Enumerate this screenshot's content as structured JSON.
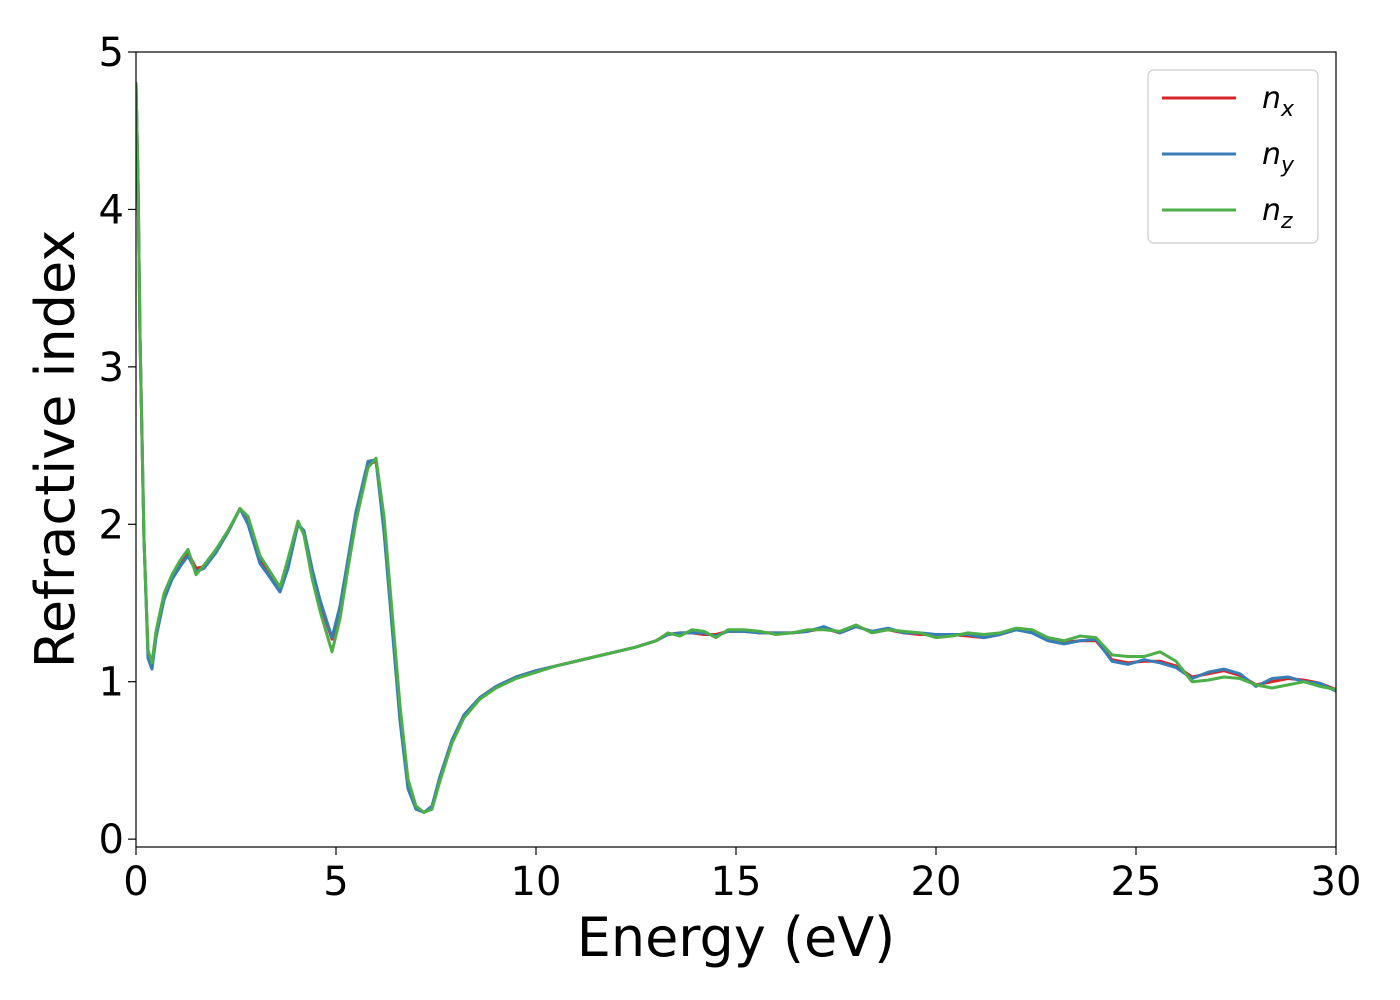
{
  "chart_data": {
    "type": "line",
    "xlabel": "Energy (eV)",
    "ylabel": "Refractive index",
    "xlim": [
      0,
      30
    ],
    "ylim": [
      -0.05,
      5
    ],
    "xticks": [
      0,
      5,
      10,
      15,
      20,
      25,
      30
    ],
    "yticks": [
      0,
      1,
      2,
      3,
      4,
      5
    ],
    "grid": false,
    "legend_position": "top-right",
    "series": [
      {
        "name": "n_x",
        "label_base": "n",
        "label_sub": "x",
        "color": "#d62728",
        "x": [
          0,
          0.05,
          0.1,
          0.2,
          0.3,
          0.4,
          0.5,
          0.7,
          0.9,
          1.1,
          1.3,
          1.5,
          1.7,
          2.0,
          2.3,
          2.6,
          2.8,
          3.1,
          3.3,
          3.6,
          3.8,
          4.05,
          4.2,
          4.4,
          4.6,
          4.9,
          5.1,
          5.3,
          5.5,
          5.8,
          6.0,
          6.2,
          6.4,
          6.6,
          6.8,
          7.0,
          7.2,
          7.4,
          7.6,
          7.9,
          8.2,
          8.6,
          9.0,
          9.5,
          10.0,
          10.5,
          11.0,
          11.5,
          12.0,
          12.5,
          13.0,
          13.3,
          13.6,
          13.9,
          14.2,
          14.5,
          14.8,
          15.2,
          15.6,
          16.0,
          16.4,
          16.8,
          17.2,
          17.6,
          18.0,
          18.4,
          18.8,
          19.2,
          19.6,
          20.0,
          20.4,
          20.8,
          21.2,
          21.6,
          22.0,
          22.4,
          22.8,
          23.2,
          23.6,
          24.0,
          24.4,
          24.8,
          25.2,
          25.6,
          26.0,
          26.4,
          26.8,
          27.2,
          27.6,
          28.0,
          28.4,
          28.8,
          29.2,
          29.6,
          30.0
        ],
        "values": [
          4.8,
          4.2,
          3.2,
          1.9,
          1.2,
          1.1,
          1.3,
          1.55,
          1.67,
          1.75,
          1.82,
          1.72,
          1.73,
          1.83,
          1.95,
          2.1,
          2.02,
          1.78,
          1.7,
          1.58,
          1.75,
          2.0,
          1.95,
          1.7,
          1.5,
          1.27,
          1.45,
          1.75,
          2.05,
          2.38,
          2.4,
          2.0,
          1.4,
          0.8,
          0.35,
          0.2,
          0.17,
          0.2,
          0.38,
          0.62,
          0.78,
          0.9,
          0.97,
          1.03,
          1.07,
          1.1,
          1.13,
          1.16,
          1.19,
          1.22,
          1.26,
          1.3,
          1.31,
          1.31,
          1.3,
          1.3,
          1.32,
          1.32,
          1.31,
          1.31,
          1.31,
          1.32,
          1.34,
          1.31,
          1.35,
          1.32,
          1.33,
          1.31,
          1.3,
          1.3,
          1.3,
          1.29,
          1.28,
          1.3,
          1.33,
          1.32,
          1.27,
          1.25,
          1.26,
          1.26,
          1.14,
          1.12,
          1.13,
          1.13,
          1.1,
          1.03,
          1.05,
          1.07,
          1.04,
          0.98,
          1.0,
          1.02,
          1.01,
          0.99,
          0.95
        ]
      },
      {
        "name": "n_y",
        "label_base": "n",
        "label_sub": "y",
        "color": "#377eb8",
        "x": [
          0,
          0.05,
          0.1,
          0.2,
          0.3,
          0.4,
          0.5,
          0.7,
          0.9,
          1.1,
          1.3,
          1.5,
          1.7,
          2.0,
          2.3,
          2.6,
          2.8,
          3.1,
          3.3,
          3.6,
          3.8,
          4.05,
          4.2,
          4.4,
          4.6,
          4.9,
          5.1,
          5.3,
          5.5,
          5.8,
          6.0,
          6.2,
          6.4,
          6.6,
          6.8,
          7.0,
          7.2,
          7.4,
          7.6,
          7.9,
          8.2,
          8.6,
          9.0,
          9.5,
          10.0,
          10.5,
          11.0,
          11.5,
          12.0,
          12.5,
          13.0,
          13.3,
          13.6,
          13.9,
          14.2,
          14.5,
          14.8,
          15.2,
          15.6,
          16.0,
          16.4,
          16.8,
          17.2,
          17.6,
          18.0,
          18.4,
          18.8,
          19.2,
          19.6,
          20.0,
          20.4,
          20.8,
          21.2,
          21.6,
          22.0,
          22.4,
          22.8,
          23.2,
          23.6,
          24.0,
          24.4,
          24.8,
          25.2,
          25.6,
          26.0,
          26.4,
          26.8,
          27.2,
          27.6,
          28.0,
          28.4,
          28.8,
          29.2,
          29.6,
          30.0
        ],
        "values": [
          4.8,
          4.2,
          3.2,
          1.9,
          1.15,
          1.08,
          1.28,
          1.52,
          1.65,
          1.73,
          1.8,
          1.7,
          1.72,
          1.82,
          1.95,
          2.1,
          2.0,
          1.75,
          1.68,
          1.57,
          1.72,
          2.0,
          1.96,
          1.72,
          1.52,
          1.28,
          1.48,
          1.78,
          2.08,
          2.4,
          2.41,
          1.95,
          1.35,
          0.75,
          0.32,
          0.19,
          0.17,
          0.21,
          0.4,
          0.63,
          0.79,
          0.9,
          0.97,
          1.03,
          1.07,
          1.1,
          1.13,
          1.16,
          1.19,
          1.22,
          1.26,
          1.3,
          1.31,
          1.31,
          1.31,
          1.29,
          1.32,
          1.32,
          1.31,
          1.31,
          1.31,
          1.32,
          1.35,
          1.31,
          1.35,
          1.32,
          1.34,
          1.31,
          1.31,
          1.3,
          1.3,
          1.3,
          1.28,
          1.3,
          1.33,
          1.31,
          1.26,
          1.24,
          1.26,
          1.27,
          1.13,
          1.11,
          1.14,
          1.12,
          1.09,
          1.02,
          1.06,
          1.08,
          1.05,
          0.97,
          1.02,
          1.03,
          1.0,
          0.99,
          0.94
        ]
      },
      {
        "name": "n_z",
        "label_base": "n",
        "label_sub": "z",
        "color": "#4daf4a",
        "x": [
          0,
          0.05,
          0.1,
          0.2,
          0.3,
          0.4,
          0.5,
          0.7,
          0.9,
          1.1,
          1.3,
          1.5,
          1.7,
          2.0,
          2.3,
          2.6,
          2.8,
          3.1,
          3.3,
          3.6,
          3.8,
          4.05,
          4.2,
          4.4,
          4.6,
          4.9,
          5.1,
          5.3,
          5.5,
          5.8,
          6.0,
          6.2,
          6.4,
          6.6,
          6.8,
          7.0,
          7.2,
          7.4,
          7.6,
          7.9,
          8.2,
          8.6,
          9.0,
          9.5,
          10.0,
          10.5,
          11.0,
          11.5,
          12.0,
          12.5,
          13.0,
          13.3,
          13.6,
          13.9,
          14.2,
          14.5,
          14.8,
          15.2,
          15.6,
          16.0,
          16.4,
          16.8,
          17.2,
          17.6,
          18.0,
          18.4,
          18.8,
          19.2,
          19.6,
          20.0,
          20.4,
          20.8,
          21.2,
          21.6,
          22.0,
          22.4,
          22.8,
          23.2,
          23.6,
          24.0,
          24.4,
          24.8,
          25.2,
          25.6,
          26.0,
          26.4,
          26.8,
          27.2,
          27.6,
          28.0,
          28.4,
          28.8,
          29.2,
          29.6,
          30.0
        ],
        "values": [
          4.8,
          4.2,
          3.2,
          1.9,
          1.2,
          1.12,
          1.32,
          1.56,
          1.68,
          1.77,
          1.84,
          1.68,
          1.74,
          1.84,
          1.96,
          2.1,
          2.05,
          1.8,
          1.72,
          1.6,
          1.78,
          2.02,
          1.93,
          1.66,
          1.45,
          1.19,
          1.4,
          1.72,
          2.02,
          2.36,
          2.42,
          2.05,
          1.45,
          0.85,
          0.38,
          0.21,
          0.17,
          0.19,
          0.37,
          0.61,
          0.77,
          0.89,
          0.96,
          1.02,
          1.06,
          1.1,
          1.13,
          1.16,
          1.19,
          1.22,
          1.26,
          1.31,
          1.29,
          1.33,
          1.32,
          1.28,
          1.33,
          1.33,
          1.32,
          1.3,
          1.31,
          1.33,
          1.33,
          1.32,
          1.36,
          1.31,
          1.33,
          1.32,
          1.31,
          1.28,
          1.29,
          1.31,
          1.3,
          1.31,
          1.34,
          1.33,
          1.28,
          1.26,
          1.29,
          1.28,
          1.17,
          1.16,
          1.16,
          1.19,
          1.13,
          1.0,
          1.01,
          1.03,
          1.02,
          0.98,
          0.96,
          0.98,
          1.0,
          0.97,
          0.95
        ]
      }
    ]
  }
}
